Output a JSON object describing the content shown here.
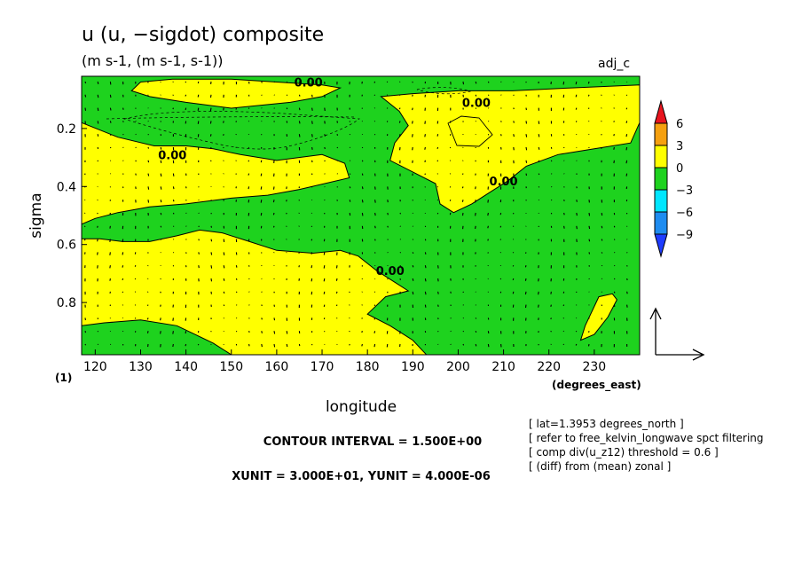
{
  "chart_data": {
    "type": "heatmap",
    "title": "u (u, −sigdot) composite",
    "subtitle": "(m s-1, (m s-1, s-1))",
    "tag": "adj_c",
    "xlabel": "longitude",
    "ylabel": "sigma",
    "x_unit_label": "(degrees_east)",
    "y_extra_label": "(1)",
    "xlim": [
      117,
      240
    ],
    "ylim": [
      0.02,
      0.98
    ],
    "y_inverted": true,
    "x_ticks": [
      "120",
      "130",
      "140",
      "150",
      "160",
      "170",
      "180",
      "190",
      "200",
      "210",
      "220",
      "230"
    ],
    "x_tick_values": [
      120,
      130,
      140,
      150,
      160,
      170,
      180,
      190,
      200,
      210,
      220,
      230
    ],
    "y_ticks": [
      "0.2",
      "0.4",
      "0.6",
      "0.8"
    ],
    "y_tick_values": [
      0.2,
      0.4,
      0.6,
      0.8
    ],
    "colorbar": {
      "labels": [
        "6",
        "3",
        "0",
        "−3",
        "−6",
        "−9"
      ],
      "label_values": [
        6,
        3,
        0,
        -3,
        -6,
        -9
      ],
      "bins": [
        {
          "min": 6,
          "max": 9,
          "color": "#e8141e"
        },
        {
          "min": 3,
          "max": 6,
          "color": "#f5a00f"
        },
        {
          "min": 0,
          "max": 3,
          "color": "#ffff00"
        },
        {
          "min": -3,
          "max": 0,
          "color": "#1ed21e"
        },
        {
          "min": -6,
          "max": -3,
          "color": "#00e6ff"
        },
        {
          "min": -9,
          "max": -6,
          "color": "#1e8cf0"
        },
        {
          "min": -12,
          "max": -9,
          "color": "#1e3cff"
        }
      ]
    },
    "background_color": "#1ed21e",
    "positive_regions": [
      {
        "name": "upper-left-region",
        "points": [
          [
            117,
            0.18
          ],
          [
            125,
            0.23
          ],
          [
            133,
            0.26
          ],
          [
            140,
            0.26
          ],
          [
            146,
            0.27
          ],
          [
            152,
            0.29
          ],
          [
            160,
            0.31
          ],
          [
            170,
            0.29
          ],
          [
            175,
            0.32
          ],
          [
            176,
            0.37
          ],
          [
            165,
            0.41
          ],
          [
            158,
            0.43
          ],
          [
            150,
            0.44
          ],
          [
            140,
            0.46
          ],
          [
            132,
            0.47
          ],
          [
            125,
            0.49
          ],
          [
            120,
            0.51
          ],
          [
            117,
            0.53
          ]
        ]
      },
      {
        "name": "top-left-patch",
        "points": [
          [
            130,
            0.04
          ],
          [
            137,
            0.03
          ],
          [
            150,
            0.03
          ],
          [
            160,
            0.04
          ],
          [
            170,
            0.05
          ],
          [
            174,
            0.06
          ],
          [
            170,
            0.09
          ],
          [
            163,
            0.11
          ],
          [
            150,
            0.13
          ],
          [
            140,
            0.11
          ],
          [
            132,
            0.09
          ],
          [
            128,
            0.07
          ]
        ]
      },
      {
        "name": "upper-right-region",
        "points": [
          [
            183,
            0.09
          ],
          [
            190,
            0.08
          ],
          [
            200,
            0.07
          ],
          [
            212,
            0.07
          ],
          [
            225,
            0.06
          ],
          [
            240,
            0.05
          ],
          [
            240,
            0.18
          ],
          [
            238,
            0.25
          ],
          [
            230,
            0.27
          ],
          [
            222,
            0.29
          ],
          [
            215,
            0.33
          ],
          [
            211,
            0.38
          ],
          [
            207,
            0.42
          ],
          [
            203,
            0.46
          ],
          [
            199,
            0.49
          ],
          [
            196,
            0.46
          ],
          [
            195,
            0.39
          ],
          [
            190,
            0.35
          ],
          [
            185,
            0.31
          ],
          [
            186,
            0.25
          ],
          [
            189,
            0.19
          ],
          [
            187,
            0.14
          ]
        ]
      },
      {
        "name": "middle-lower-band",
        "points": [
          [
            117,
            0.58
          ],
          [
            121,
            0.58
          ],
          [
            126,
            0.59
          ],
          [
            132,
            0.59
          ],
          [
            138,
            0.57
          ],
          [
            143,
            0.55
          ],
          [
            148,
            0.56
          ],
          [
            154,
            0.59
          ],
          [
            160,
            0.62
          ],
          [
            168,
            0.63
          ],
          [
            174,
            0.62
          ],
          [
            178,
            0.64
          ],
          [
            182,
            0.69
          ],
          [
            186,
            0.73
          ],
          [
            189,
            0.76
          ],
          [
            184,
            0.78
          ],
          [
            180,
            0.84
          ],
          [
            185,
            0.88
          ],
          [
            190,
            0.93
          ],
          [
            193,
            0.98
          ],
          [
            150,
            0.98
          ],
          [
            146,
            0.94
          ],
          [
            142,
            0.91
          ],
          [
            138,
            0.88
          ],
          [
            130,
            0.86
          ],
          [
            122,
            0.87
          ],
          [
            117,
            0.88
          ]
        ]
      },
      {
        "name": "small-right-patch",
        "points": [
          [
            227,
            0.93
          ],
          [
            228,
            0.88
          ],
          [
            231,
            0.78
          ],
          [
            234,
            0.77
          ],
          [
            235,
            0.79
          ],
          [
            233,
            0.85
          ],
          [
            230,
            0.91
          ]
        ]
      }
    ],
    "zero_labels": [
      {
        "text": "0.00",
        "x": 167,
        "y": 0.04
      },
      {
        "text": "0.00",
        "x": 204,
        "y": 0.11
      },
      {
        "text": "0.00",
        "x": 137,
        "y": 0.29
      },
      {
        "text": "0.00",
        "x": 210,
        "y": 0.38
      },
      {
        "text": "0.00",
        "x": 185,
        "y": 0.69
      }
    ],
    "vector_reference": {
      "xunit": "3.000E+01",
      "yunit": "4.000E-06"
    }
  },
  "footer": {
    "contour_interval": "CONTOUR INTERVAL = 1.500E+00",
    "units": "XUNIT = 3.000E+01, YUNIT = 4.000E-06"
  },
  "metadata_lines": [
    "[ lat=1.3953 degrees_north ]",
    "[ refer to free_kelvin_longwave spct filtering",
    "[ comp div(u_z12) threshold = 0.6 ]",
    "[ (diff) from (mean) zonal ]"
  ]
}
